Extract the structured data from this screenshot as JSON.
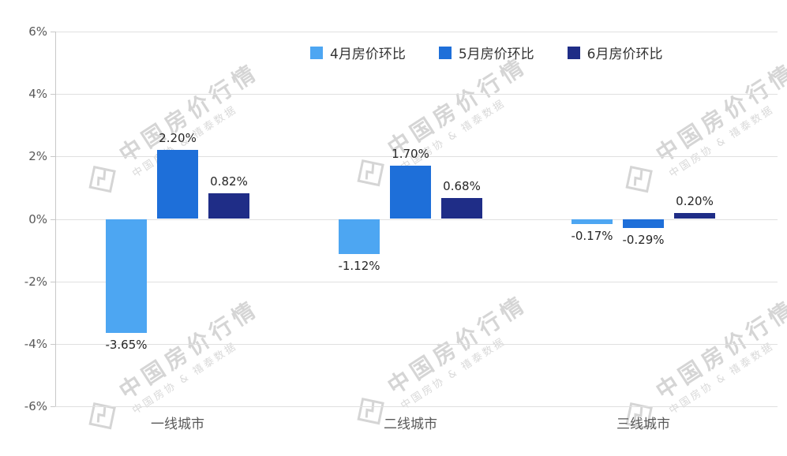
{
  "chart_data": {
    "type": "bar",
    "title": "",
    "categories": [
      "一线城市",
      "二线城市",
      "三线城市"
    ],
    "series": [
      {
        "name": "4月房价环比",
        "color": "#4DA6F2",
        "values": [
          -3.65,
          -1.12,
          -0.17
        ],
        "labels": [
          "-3.65%",
          "-1.12%",
          "-0.17%"
        ]
      },
      {
        "name": "5月房价环比",
        "color": "#1E6FD9",
        "values": [
          2.2,
          1.7,
          -0.29
        ],
        "labels": [
          "2.20%",
          "1.70%",
          "-0.29%"
        ]
      },
      {
        "name": "6月房价环比",
        "color": "#1F2D87",
        "values": [
          0.82,
          0.68,
          0.2
        ],
        "labels": [
          "0.82%",
          "0.68%",
          "0.20%"
        ]
      }
    ],
    "ylim": [
      -6,
      6
    ],
    "yticks": [
      {
        "value": 6,
        "label": "6%"
      },
      {
        "value": 4,
        "label": "4%"
      },
      {
        "value": 2,
        "label": "2%"
      },
      {
        "value": 0,
        "label": "0%"
      },
      {
        "value": -2,
        "label": "-2%"
      },
      {
        "value": -4,
        "label": "-4%"
      },
      {
        "value": -6,
        "label": "-6%"
      }
    ],
    "grid": true,
    "legend_position": "top-center"
  },
  "watermark": {
    "main": "中国房价行情",
    "sub": "中国房协 & 禧泰数据"
  }
}
